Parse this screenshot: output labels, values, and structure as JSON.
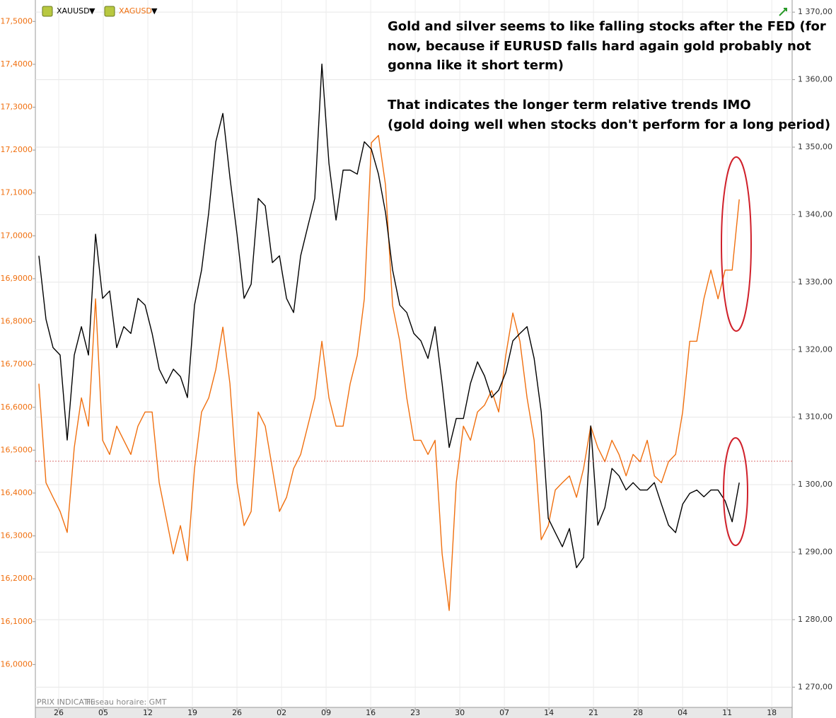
{
  "chart_data": {
    "type": "line",
    "annotations": [
      "Gold and silver seems to like falling stocks after the FED (for",
      "now, because if EURUSD falls hard again gold probably not",
      "gonna like it short term)",
      "That indicates the longer term relative trends IMO",
      "(gold doing well when stocks don't perform for a long period)"
    ],
    "footnotes": [
      "PRIX INDICATIF",
      "Fuseau horaire: GMT"
    ],
    "x": [
      -3.11,
      -2.0,
      -0.89,
      0.22,
      1.33,
      2.44,
      3.56,
      4.67,
      5.78,
      6.89,
      8.0,
      9.11,
      10.22,
      11.33,
      12.44,
      13.56,
      14.67,
      15.78,
      16.89,
      18.0,
      19.11,
      20.22,
      21.33,
      22.44,
      23.56,
      24.67,
      25.78,
      26.89,
      28.0,
      29.11,
      30.22,
      31.33,
      32.44,
      33.56,
      34.67,
      35.78,
      36.89,
      38.0,
      39.11,
      40.22,
      41.33,
      42.44,
      43.56,
      44.67,
      45.78,
      46.89,
      48.0,
      49.11,
      50.22,
      51.33,
      52.44,
      53.56,
      54.67,
      55.78,
      56.89,
      58.0,
      59.11,
      60.22,
      61.33,
      62.44,
      63.56,
      64.67,
      65.78,
      66.89,
      68.0,
      69.11,
      70.22,
      71.33,
      72.44,
      73.56,
      74.67,
      75.78,
      76.89,
      78.0,
      79.11,
      80.22,
      81.33,
      82.44,
      83.56,
      84.67,
      85.78,
      86.89,
      88.0,
      89.11,
      90.22,
      91.33,
      92.44,
      93.56,
      94.67,
      95.78,
      96.89,
      98.0,
      99.11,
      100.22,
      101.33,
      102.44,
      103.56,
      104.67,
      105.78,
      106.89
    ],
    "series": [
      {
        "name": "XAUUSD",
        "color": "#000000",
        "axis": "y2",
        "values": [
          1333.9,
          1324.5,
          1320.3,
          1319.2,
          1306.6,
          1319.2,
          1323.4,
          1319.2,
          1337.1,
          1327.6,
          1328.7,
          1320.3,
          1323.4,
          1322.4,
          1327.6,
          1326.6,
          1322.4,
          1317.1,
          1315.0,
          1317.1,
          1316.0,
          1312.9,
          1326.6,
          1331.8,
          1340.3,
          1350.8,
          1355.0,
          1345.5,
          1337.1,
          1327.6,
          1329.7,
          1342.4,
          1341.3,
          1332.9,
          1333.9,
          1327.6,
          1325.5,
          1333.9,
          1338.2,
          1342.4,
          1362.3,
          1347.6,
          1339.2,
          1346.6,
          1346.6,
          1346.0,
          1350.8,
          1349.7,
          1346.0,
          1340.3,
          1331.8,
          1326.6,
          1325.5,
          1322.4,
          1321.3,
          1318.7,
          1323.4,
          1315.0,
          1305.5,
          1309.8,
          1309.8,
          1315.0,
          1318.2,
          1316.1,
          1312.9,
          1314.0,
          1316.6,
          1321.3,
          1322.4,
          1323.4,
          1318.7,
          1310.8,
          1295.0,
          1292.9,
          1290.8,
          1293.5,
          1287.7,
          1289.2,
          1308.7,
          1294.0,
          1296.6,
          1302.4,
          1301.3,
          1299.2,
          1300.3,
          1299.2,
          1299.2,
          1300.3,
          1297.1,
          1294.0,
          1292.9,
          1297.1,
          1298.7,
          1299.2,
          1298.2,
          1299.2,
          1299.2,
          1297.6,
          1294.5,
          1300.3
        ]
      },
      {
        "name": "XAGUSD",
        "color": "#f07010",
        "values": [
          16.655,
          16.424,
          16.39,
          16.357,
          16.308,
          16.506,
          16.622,
          16.556,
          16.853,
          16.523,
          16.49,
          16.556,
          16.523,
          16.49,
          16.556,
          16.589,
          16.589,
          16.424,
          16.341,
          16.258,
          16.324,
          16.242,
          16.457,
          16.589,
          16.622,
          16.688,
          16.787,
          16.655,
          16.424,
          16.324,
          16.357,
          16.589,
          16.556,
          16.457,
          16.357,
          16.39,
          16.457,
          16.49,
          16.556,
          16.622,
          16.754,
          16.622,
          16.556,
          16.556,
          16.655,
          16.721,
          16.853,
          17.217,
          17.234,
          17.118,
          16.837,
          16.754,
          16.622,
          16.523,
          16.523,
          16.49,
          16.523,
          16.258,
          16.126,
          16.424,
          16.556,
          16.523,
          16.589,
          16.605,
          16.639,
          16.589,
          16.721,
          16.82,
          16.754,
          16.622,
          16.523,
          16.291,
          16.324,
          16.407,
          16.424,
          16.44,
          16.39,
          16.457,
          16.556,
          16.506,
          16.473,
          16.523,
          16.49,
          16.44,
          16.49,
          16.473,
          16.523,
          16.44,
          16.424,
          16.473,
          16.49,
          16.589,
          16.754,
          16.754,
          16.853,
          16.92,
          16.853,
          16.92,
          16.92,
          17.085
        ]
      }
    ],
    "xlim": [
      -3.67,
      115.2
    ],
    "xticks": [
      {
        "value": 0,
        "label": "26"
      },
      {
        "value": 7,
        "label": "05"
      },
      {
        "value": 14,
        "label": "12"
      },
      {
        "value": 21,
        "label": "19"
      },
      {
        "value": 28,
        "label": "26"
      },
      {
        "value": 35,
        "label": "02"
      },
      {
        "value": 42,
        "label": "09"
      },
      {
        "value": 49,
        "label": "16"
      },
      {
        "value": 56,
        "label": "23"
      },
      {
        "value": 63,
        "label": "30"
      },
      {
        "value": 70,
        "label": "07"
      },
      {
        "value": 77,
        "label": "14"
      },
      {
        "value": 84,
        "label": "21"
      },
      {
        "value": 91,
        "label": "28"
      },
      {
        "value": 98,
        "label": "04"
      },
      {
        "value": 105,
        "label": "11"
      },
      {
        "value": 112,
        "label": "18"
      }
    ],
    "ylim": [
      15.9,
      17.55
    ],
    "yticks": [
      {
        "value": 16.0,
        "label": "16,0000"
      },
      {
        "value": 16.1,
        "label": "16,1000"
      },
      {
        "value": 16.2,
        "label": "16,2000"
      },
      {
        "value": 16.3,
        "label": "16,3000"
      },
      {
        "value": 16.4,
        "label": "16,4000"
      },
      {
        "value": 16.5,
        "label": "16,5000"
      },
      {
        "value": 16.6,
        "label": "16,6000"
      },
      {
        "value": 16.7,
        "label": "16,7000"
      },
      {
        "value": 16.8,
        "label": "16,8000"
      },
      {
        "value": 16.9,
        "label": "16,9000"
      },
      {
        "value": 17.0,
        "label": "17,0000"
      },
      {
        "value": 17.1,
        "label": "17,1000"
      },
      {
        "value": 17.2,
        "label": "17,2000"
      },
      {
        "value": 17.3,
        "label": "17,3000"
      },
      {
        "value": 17.4,
        "label": "17,4000"
      },
      {
        "value": 17.5,
        "label": "17,5000"
      }
    ],
    "y2lim": [
      1267,
      1371.8
    ],
    "y2ticks": [
      {
        "value": 1270,
        "label": "1 270,00"
      },
      {
        "value": 1280,
        "label": "1 280,00"
      },
      {
        "value": 1290,
        "label": "1 290,00"
      },
      {
        "value": 1300,
        "label": "1 300,00"
      },
      {
        "value": 1310,
        "label": "1 310,00"
      },
      {
        "value": 1320,
        "label": "1 320,00"
      },
      {
        "value": 1330,
        "label": "1 330,00"
      },
      {
        "value": 1340,
        "label": "1 340,00"
      },
      {
        "value": 1350,
        "label": "1 350,00"
      },
      {
        "value": 1360,
        "label": "1 360,00"
      },
      {
        "value": 1370,
        "label": "1 370,00"
      }
    ],
    "grid": true
  }
}
